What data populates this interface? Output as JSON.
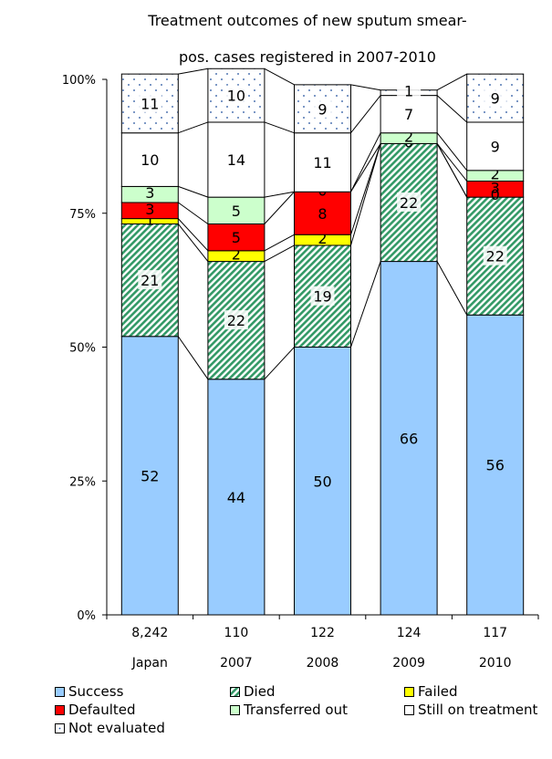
{
  "chart_data": {
    "type": "bar",
    "stacked": true,
    "percent": true,
    "title_lines": [
      "Treatment outcomes of new sputum smear-",
      "pos. cases registered in 2007-2010"
    ],
    "y_ticks": [
      "0%",
      "25%",
      "50%",
      "75%",
      "100%"
    ],
    "ylim": [
      0,
      100
    ],
    "categories": [
      "Japan",
      "2007",
      "2008",
      "2009",
      "2010"
    ],
    "counts": [
      "8,242",
      "110",
      "122",
      "124",
      "117"
    ],
    "series": [
      {
        "name": "Success",
        "color": "#99ccff",
        "pattern": "solid",
        "values": [
          52,
          44,
          50,
          66,
          56
        ]
      },
      {
        "name": "Died",
        "color": "#339966",
        "pattern": "diagonal",
        "values": [
          21,
          22,
          19,
          22,
          22
        ]
      },
      {
        "name": "Failed",
        "color": "#ffff00",
        "pattern": "solid",
        "values": [
          1,
          2,
          2,
          0,
          0
        ]
      },
      {
        "name": "Defaulted",
        "color": "#ff0000",
        "pattern": "solid",
        "values": [
          3,
          5,
          8,
          0,
          3
        ]
      },
      {
        "name": "Transferred out",
        "color": "#ccffcc",
        "pattern": "solid",
        "values": [
          3,
          5,
          0,
          2,
          2
        ]
      },
      {
        "name": "Still on treatment",
        "color": "#ffffff",
        "pattern": "solid",
        "values": [
          10,
          14,
          11,
          7,
          9
        ]
      },
      {
        "name": "Not evaluated",
        "color": "#ffffff",
        "pattern": "dots",
        "values": [
          11,
          10,
          9,
          1,
          9
        ]
      }
    ],
    "value_labels": [
      [
        "52",
        "21",
        "1",
        "3",
        "3",
        "10",
        "11"
      ],
      [
        "44",
        "22",
        "2",
        "5",
        "5",
        "14",
        "10"
      ],
      [
        "50",
        "19",
        "2",
        "8",
        "0",
        "11",
        "9"
      ],
      [
        "66",
        "22",
        "",
        "0",
        "2",
        "7",
        "1"
      ],
      [
        "56",
        "22",
        "",
        "3",
        "2",
        "9",
        "9"
      ]
    ],
    "extra_labels": [
      {
        "category": 4,
        "series": 3,
        "text": "0"
      }
    ],
    "legend_position": "bottom"
  }
}
